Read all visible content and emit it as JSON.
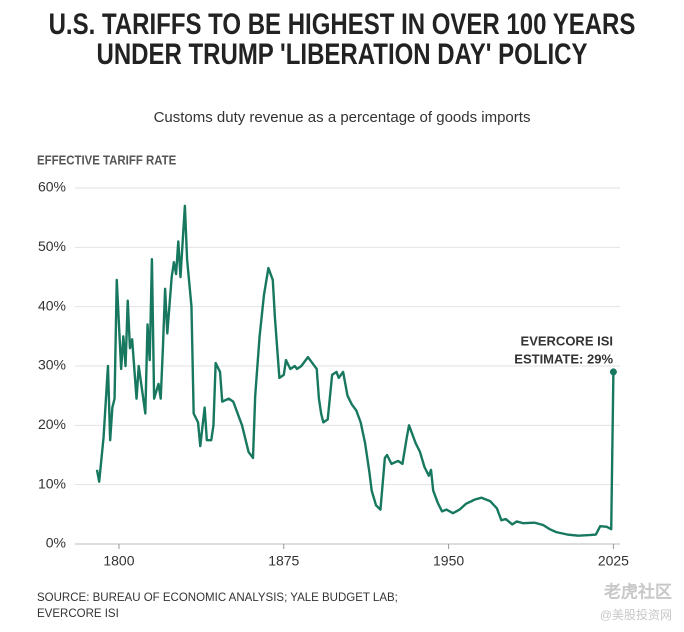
{
  "chart_data": {
    "type": "line",
    "title": "U.S. TARIFFS TO BE HIGHEST IN OVER 100 YEARS UNDER TRUMP 'LIBERATION DAY' POLICY",
    "subtitle": "Customs duty revenue as a percentage of goods imports",
    "y_axis_label": "EFFECTIVE TARIFF RATE",
    "annotation": [
      "EVERCORE ISI",
      "ESTIMATE: 29%"
    ],
    "source": [
      "SOURCE: BUREAU OF ECONOMIC ANALYSIS; YALE BUDGET LAB;",
      "EVERCORE ISI"
    ],
    "watermark": [
      "老虎社区",
      "@美股投资网"
    ],
    "color": "#17785f",
    "grid": true,
    "xlim": [
      1780,
      2028
    ],
    "xticks": [
      1800,
      1875,
      1950,
      2025
    ],
    "ylim": [
      0,
      60
    ],
    "yticks": [
      {
        "value": 0,
        "label": "0%"
      },
      {
        "value": 10,
        "label": "10%"
      },
      {
        "value": 20,
        "label": "20%"
      },
      {
        "value": 30,
        "label": "30%"
      },
      {
        "value": 40,
        "label": "40%"
      },
      {
        "value": 50,
        "label": "50%"
      },
      {
        "value": 60,
        "label": "60%"
      }
    ],
    "x": [
      1790,
      1791,
      1793,
      1795,
      1796,
      1797,
      1798,
      1799,
      1801,
      1802,
      1803,
      1804,
      1805,
      1806,
      1808,
      1809,
      1812,
      1813,
      1814,
      1815,
      1816,
      1818,
      1819,
      1820,
      1821,
      1822,
      1824,
      1825,
      1826,
      1827,
      1828,
      1830,
      1831,
      1833,
      1834,
      1836,
      1837,
      1839,
      1840,
      1842,
      1843,
      1844,
      1846,
      1847,
      1850,
      1852,
      1854,
      1856,
      1859,
      1861,
      1862,
      1864,
      1866,
      1868,
      1870,
      1871,
      1873,
      1875,
      1876,
      1878,
      1880,
      1881,
      1883,
      1886,
      1888,
      1890,
      1891,
      1892,
      1893,
      1895,
      1897,
      1899,
      1900,
      1902,
      1904,
      1906,
      1908,
      1910,
      1912,
      1914,
      1915,
      1917,
      1919,
      1921,
      1922,
      1924,
      1927,
      1929,
      1931,
      1932,
      1935,
      1937,
      1939,
      1941,
      1942,
      1943,
      1945,
      1947,
      1949,
      1952,
      1955,
      1958,
      1962,
      1965,
      1969,
      1972,
      1974,
      1976,
      1979,
      1981,
      1984,
      1989,
      1993,
      1996,
      1999,
      2004,
      2009,
      2014,
      2017,
      2019,
      2022,
      2024,
      2025
    ],
    "values": [
      12.5,
      10.5,
      18,
      30,
      17.5,
      23,
      24.5,
      44.5,
      29.5,
      35,
      30,
      41,
      33,
      34.5,
      24.5,
      30,
      22,
      37,
      31,
      48,
      24.5,
      27,
      24.5,
      33,
      43,
      35.5,
      45,
      47.5,
      45.5,
      51,
      45,
      57,
      48,
      40,
      22,
      20.5,
      16.5,
      23,
      17.5,
      17.5,
      20,
      30.5,
      29,
      24,
      24.5,
      24,
      22,
      20,
      15.5,
      14.5,
      25,
      35,
      42,
      46.5,
      44.5,
      38,
      28,
      28.5,
      31,
      29.5,
      30,
      29.5,
      30,
      31.5,
      30.5,
      29.5,
      24.5,
      22,
      20.5,
      21,
      28.5,
      29,
      28,
      29,
      25,
      23.5,
      22.5,
      20.5,
      17,
      12,
      9,
      6.5,
      5.8,
      14.5,
      15,
      13.5,
      14,
      13.5,
      18,
      20,
      17,
      15.5,
      13,
      11.5,
      12.5,
      9,
      7,
      5.5,
      5.8,
      5.2,
      5.8,
      6.8,
      7.5,
      7.8,
      7.2,
      6,
      4,
      4.2,
      3.3,
      3.8,
      3.5,
      3.6,
      3.2,
      2.5,
      2,
      1.6,
      1.4,
      1.5,
      1.6,
      3,
      2.9,
      2.5,
      29
    ]
  }
}
